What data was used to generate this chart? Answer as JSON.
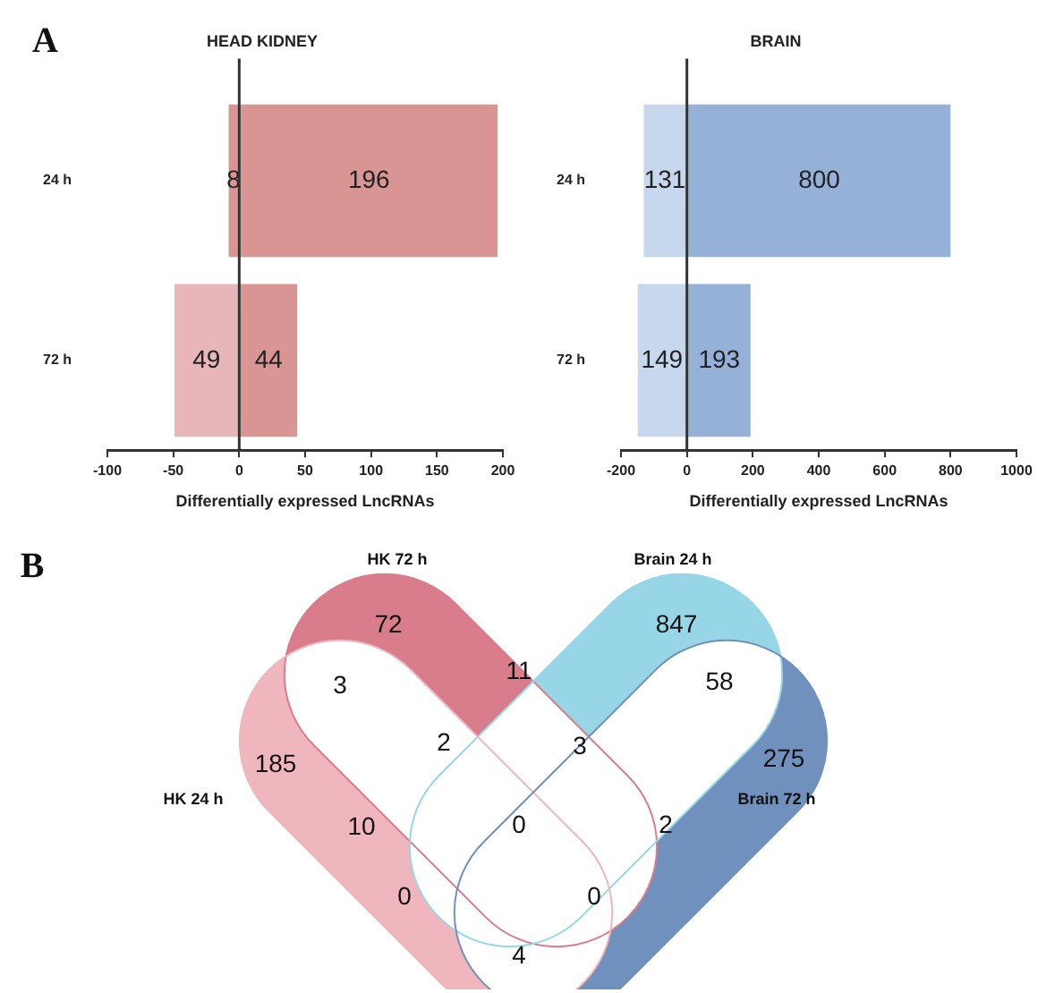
{
  "chart_data": [
    {
      "type": "bar",
      "orientation": "horizontal",
      "title": "HEAD KIDNEY",
      "xlabel": "Differentially expressed LncRNAs",
      "annotations": [
        "A"
      ],
      "categories": [
        "24 h",
        "72 h"
      ],
      "xlim": [
        -100,
        200
      ],
      "xticks": [
        -100,
        -50,
        0,
        50,
        100,
        150,
        200
      ],
      "grid": false,
      "legend": false,
      "data_labels": true,
      "ref_lines": [
        {
          "axis": "x",
          "value": 0,
          "color": "#333333"
        }
      ],
      "series": [
        {
          "colors": [
            "#d99494",
            "#e6b6b8"
          ],
          "values": [
            8,
            49
          ],
          "base": [
            -8,
            -49
          ]
        },
        {
          "colors": [
            "#d99494",
            "#d99494"
          ],
          "values": [
            196,
            44
          ],
          "base": [
            0,
            0
          ]
        }
      ]
    },
    {
      "type": "bar",
      "orientation": "horizontal",
      "title": "BRAIN",
      "xlabel": "Differentially expressed LncRNAs",
      "categories": [
        "24 h",
        "72 h"
      ],
      "xlim": [
        -200,
        1000
      ],
      "xticks": [
        -200,
        0,
        200,
        400,
        600,
        800,
        1000
      ],
      "grid": false,
      "legend": false,
      "data_labels": true,
      "ref_lines": [
        {
          "axis": "x",
          "value": 0,
          "color": "#333333"
        }
      ],
      "series": [
        {
          "colors": [
            "#c6d7ee",
            "#c6d7ee"
          ],
          "values": [
            131,
            149
          ],
          "base": [
            -131,
            -149
          ]
        },
        {
          "colors": [
            "#95b1d7",
            "#95b1d7"
          ],
          "values": [
            800,
            193
          ],
          "base": [
            0,
            0
          ]
        }
      ]
    },
    {
      "type": "other",
      "categories": [
        "HK 72 h",
        "Brain 24 h",
        "HK 24 h",
        "Brain 72 h"
      ],
      "colors": [
        "#d97c8b",
        "#97d6e6",
        "#f0b6be",
        "#7090bd"
      ],
      "annotations": [
        "B",
        "72",
        "847",
        "185",
        "275",
        "3",
        "11",
        "58",
        "2",
        "3",
        "10",
        "0",
        "2",
        "0",
        "0",
        "4"
      ]
    }
  ]
}
